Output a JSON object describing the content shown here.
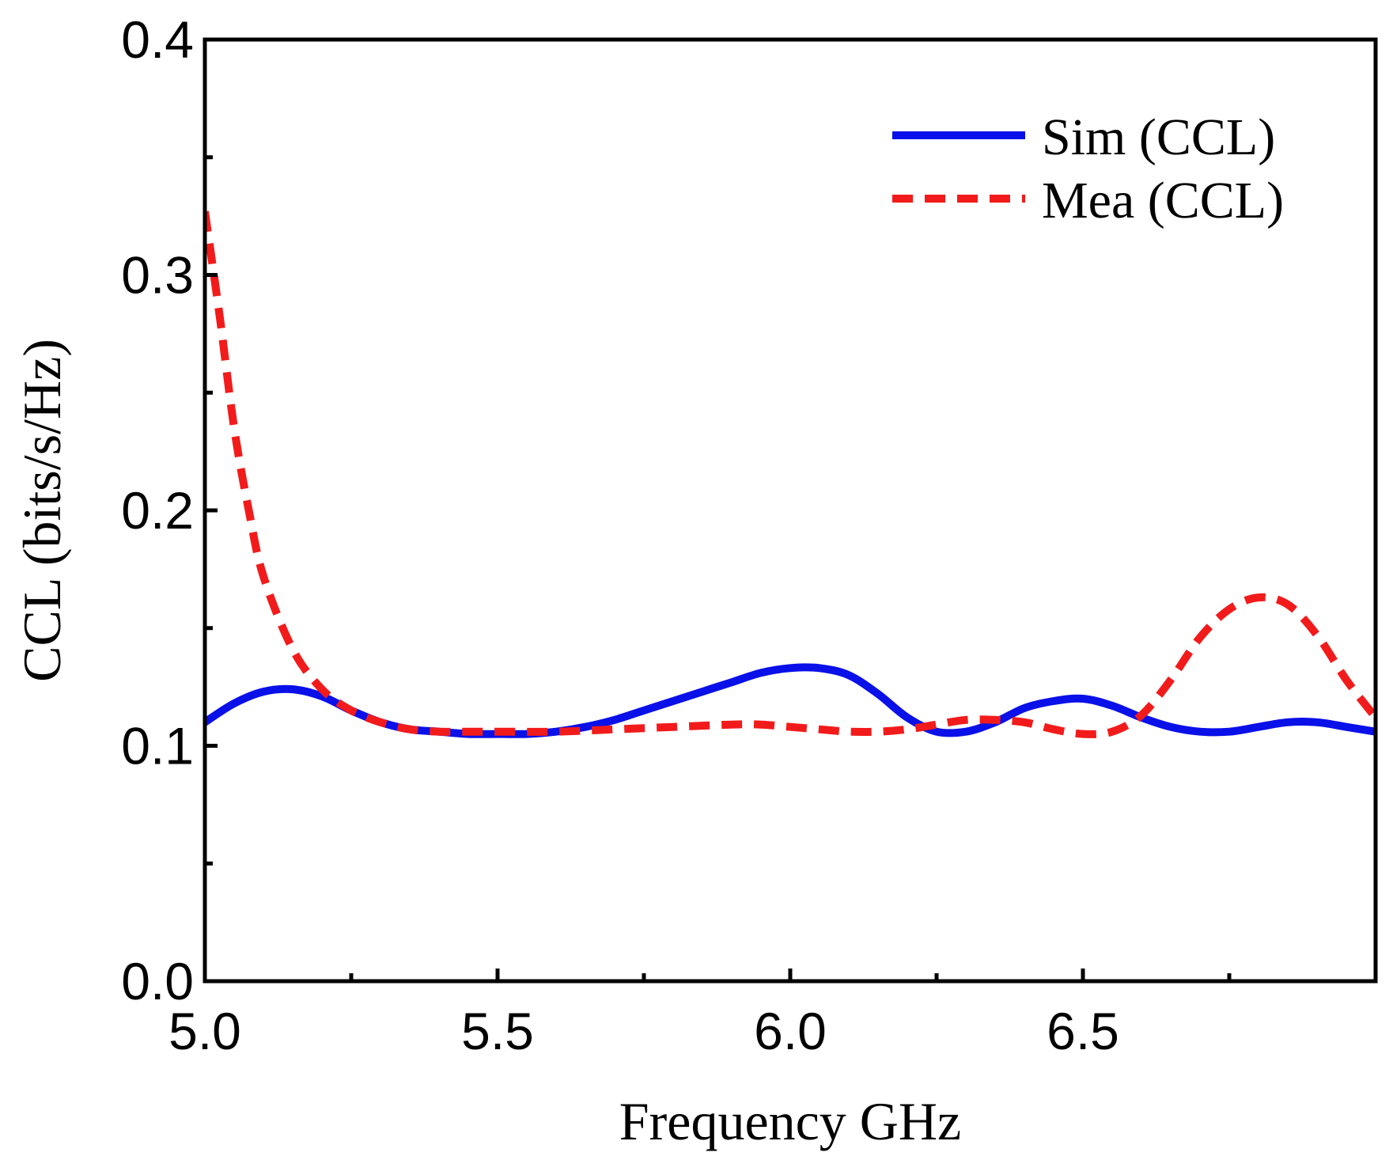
{
  "chart_data": {
    "type": "line",
    "title": "",
    "xlabel": "Frequency GHz",
    "ylabel": "CCL (bits/s/Hz)",
    "xlim": [
      5.0,
      7.0
    ],
    "ylim": [
      0.0,
      0.4
    ],
    "xticks": [
      5.0,
      5.5,
      6.0,
      6.5
    ],
    "xtick_labels": [
      "5.0",
      "5.5",
      "6.0",
      "6.5"
    ],
    "xminor": [
      5.25,
      5.75,
      6.25,
      6.75
    ],
    "yticks": [
      0.0,
      0.1,
      0.2,
      0.3,
      0.4
    ],
    "ytick_labels": [
      "0.0",
      "0.1",
      "0.2",
      "0.3",
      "0.4"
    ],
    "yminor": [
      0.05,
      0.15,
      0.25,
      0.35
    ],
    "grid": false,
    "legend_position": "top-right",
    "series": [
      {
        "name": "Sim (CCL)",
        "color": "#0a10e8",
        "style": "solid",
        "x": [
          5.0,
          5.05,
          5.1,
          5.15,
          5.2,
          5.25,
          5.3,
          5.35,
          5.4,
          5.45,
          5.5,
          5.55,
          5.6,
          5.65,
          5.7,
          5.75,
          5.8,
          5.85,
          5.9,
          5.95,
          6.0,
          6.05,
          6.1,
          6.15,
          6.2,
          6.25,
          6.3,
          6.35,
          6.4,
          6.45,
          6.5,
          6.55,
          6.6,
          6.65,
          6.7,
          6.75,
          6.8,
          6.85,
          6.9,
          6.95,
          7.0
        ],
        "values": [
          0.11,
          0.118,
          0.123,
          0.124,
          0.121,
          0.115,
          0.11,
          0.107,
          0.106,
          0.105,
          0.105,
          0.105,
          0.106,
          0.108,
          0.111,
          0.115,
          0.119,
          0.123,
          0.127,
          0.131,
          0.133,
          0.133,
          0.13,
          0.122,
          0.112,
          0.106,
          0.106,
          0.11,
          0.116,
          0.119,
          0.12,
          0.117,
          0.112,
          0.108,
          0.106,
          0.106,
          0.108,
          0.11,
          0.11,
          0.108,
          0.106
        ]
      },
      {
        "name": "Mea (CCL)",
        "color": "#f21b1b",
        "style": "dashed",
        "x": [
          5.0,
          5.025,
          5.05,
          5.075,
          5.1,
          5.15,
          5.2,
          5.25,
          5.3,
          5.35,
          5.4,
          5.45,
          5.5,
          5.6,
          5.7,
          5.8,
          5.9,
          5.95,
          6.0,
          6.05,
          6.1,
          6.15,
          6.2,
          6.25,
          6.3,
          6.35,
          6.4,
          6.45,
          6.5,
          6.55,
          6.6,
          6.65,
          6.7,
          6.75,
          6.8,
          6.85,
          6.9,
          6.95,
          7.0
        ],
        "values": [
          0.327,
          0.283,
          0.235,
          0.2,
          0.172,
          0.141,
          0.124,
          0.115,
          0.11,
          0.107,
          0.106,
          0.106,
          0.106,
          0.106,
          0.107,
          0.108,
          0.109,
          0.109,
          0.108,
          0.107,
          0.106,
          0.106,
          0.107,
          0.109,
          0.111,
          0.111,
          0.11,
          0.107,
          0.105,
          0.106,
          0.113,
          0.128,
          0.146,
          0.158,
          0.163,
          0.16,
          0.147,
          0.128,
          0.112
        ]
      }
    ]
  }
}
